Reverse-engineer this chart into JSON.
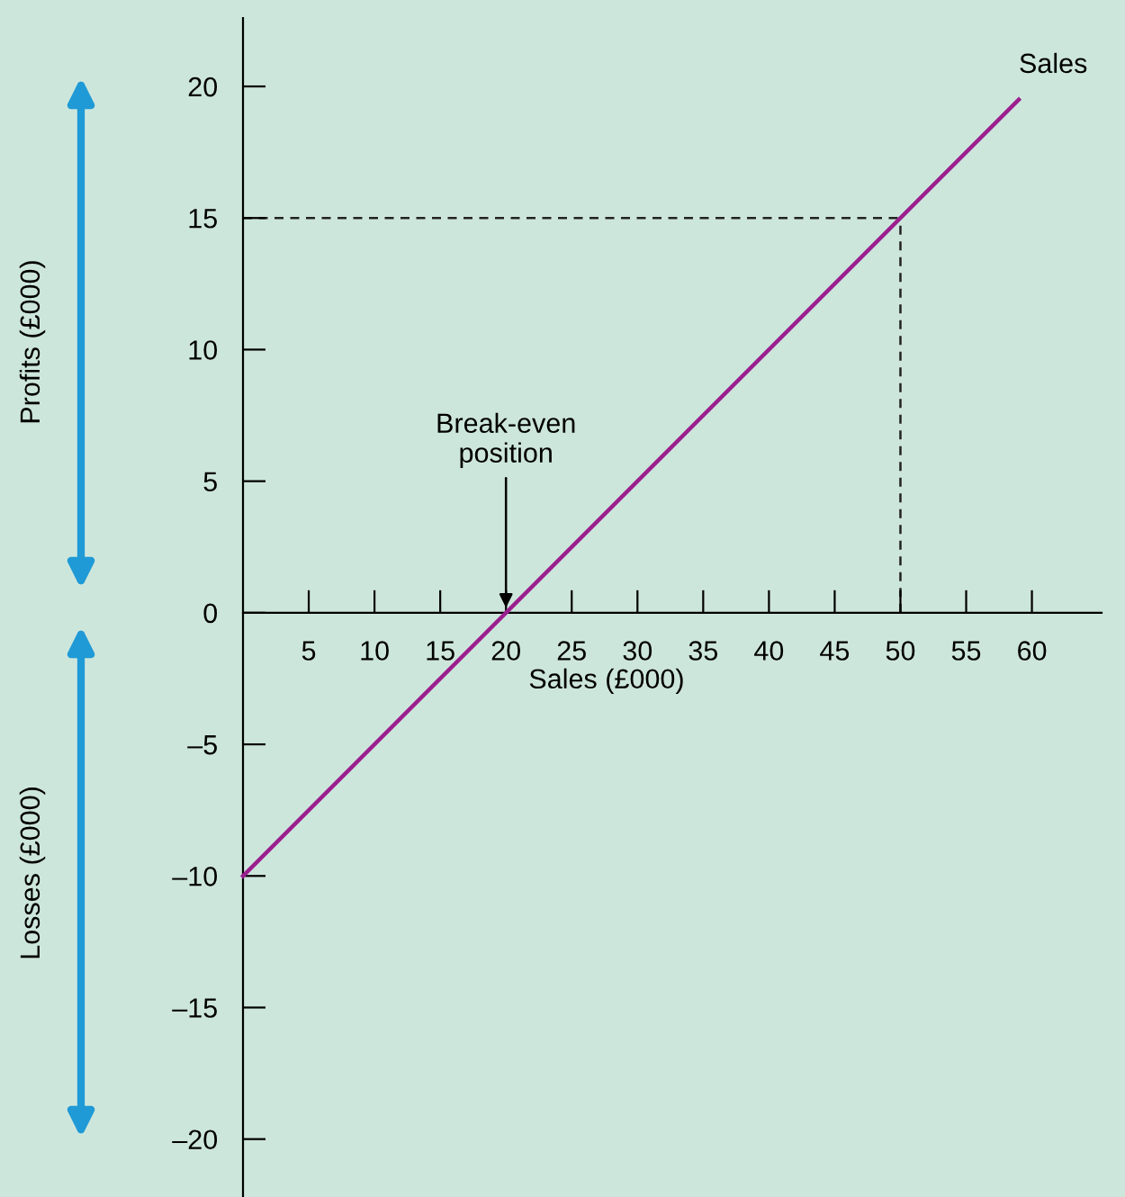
{
  "chart_data": {
    "type": "line",
    "xlabel": "Sales (£000)",
    "x": [
      0,
      59
    ],
    "series": [
      {
        "name": "Sales",
        "color": "#9b1f8e",
        "values": [
          -10,
          19.5
        ]
      }
    ],
    "ref_lines": [
      {
        "axis": "y",
        "value": 15,
        "color": "#222222",
        "line_style": "dashed"
      },
      {
        "axis": "x",
        "value": 50,
        "color": "#222222",
        "line_style": "dashed"
      }
    ],
    "xlim": [
      0,
      65.3
    ],
    "ylim": [
      -22.2,
      22.6
    ],
    "xticks": [
      5,
      10,
      15,
      20,
      25,
      30,
      35,
      40,
      45,
      50,
      55,
      60
    ],
    "yticks": [
      {
        "value": -20,
        "label": "–20"
      },
      {
        "value": -15,
        "label": "–15"
      },
      {
        "value": -10,
        "label": "–10"
      },
      {
        "value": -5,
        "label": "–5"
      },
      0,
      5,
      10,
      15,
      20
    ],
    "annotations": [
      {
        "text": "Break-even\nposition",
        "x": 20,
        "y": 0
      },
      "Profits (£000)",
      "Losses (£000)"
    ],
    "grid": false
  }
}
